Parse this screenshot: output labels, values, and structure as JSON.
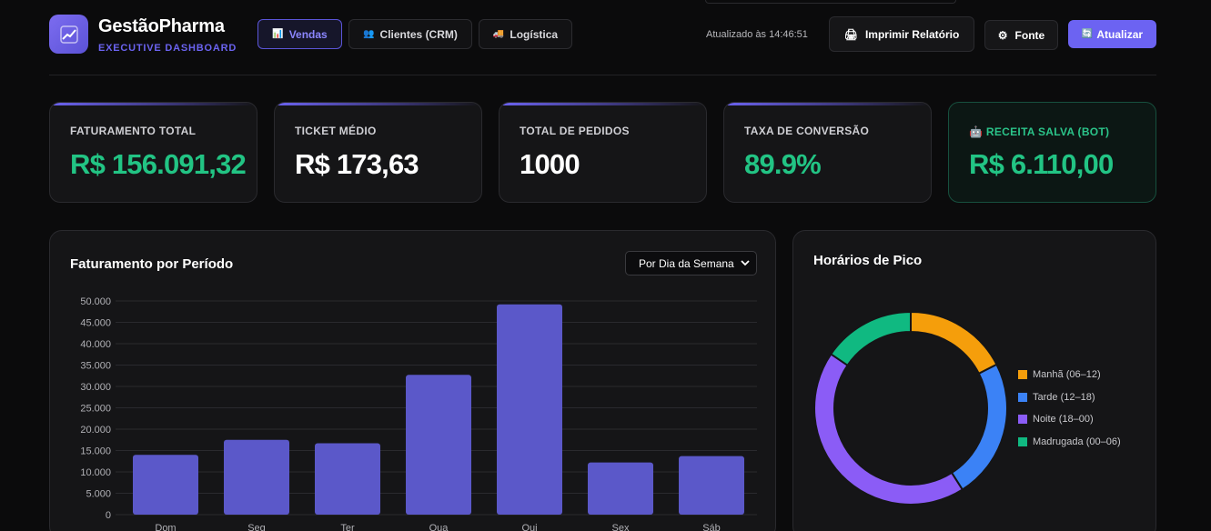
{
  "brand": {
    "title": "GestãoPharma",
    "subtitle": "EXECUTIVE DASHBOARD",
    "logo_icon": "chart-up-icon"
  },
  "nav": [
    {
      "label": "Vendas",
      "icon": "📊",
      "active": true
    },
    {
      "label": "Clientes (CRM)",
      "icon": "👥",
      "active": false
    },
    {
      "label": "Logística",
      "icon": "🚚",
      "active": false
    }
  ],
  "header": {
    "updated": "Atualizado às 14:46:51",
    "print_label": "Imprimir Relatório",
    "print_icon": "🖨",
    "font_label": "Fonte",
    "font_icon": "⚙",
    "refresh_label": "Atualizar",
    "refresh_icon": "🔄"
  },
  "kpis": [
    {
      "label": "FATURAMENTO TOTAL",
      "value": "R$ 156.091,32",
      "color": "#22c484"
    },
    {
      "label": "TICKET MÉDIO",
      "value": "R$ 173,63",
      "color": "#ffffff"
    },
    {
      "label": "TOTAL DE PEDIDOS",
      "value": "1000",
      "color": "#ffffff"
    },
    {
      "label": "TAXA DE CONVERSÃO",
      "value": "89.9%",
      "color": "#22c484"
    },
    {
      "label": "RECEITA SALVA (BOT)",
      "icon": "🤖",
      "value": "R$ 6.110,00",
      "color": "#22c484"
    }
  ],
  "revenue_panel": {
    "title": "Faturamento por Período",
    "select_value": "Por Dia da Semana"
  },
  "peak_panel": {
    "title": "Horários de Pico"
  },
  "chart_data": [
    {
      "type": "bar",
      "title": "Faturamento por Período",
      "categories": [
        "Dom",
        "Seg",
        "Ter",
        "Qua",
        "Qui",
        "Sex",
        "Sáb"
      ],
      "values": [
        14000,
        17500,
        16700,
        32700,
        49200,
        12200,
        13700
      ],
      "ylim": [
        0,
        50000
      ],
      "yticks": [
        "50.000",
        "45.000",
        "40.000",
        "35.000",
        "30.000",
        "25.000",
        "20.000",
        "15.000",
        "10.000",
        "5.000",
        "0"
      ],
      "color": "#5b58c9",
      "grid": true
    },
    {
      "type": "pie",
      "title": "Horários de Pico",
      "labels": [
        "Manhã (06–12)",
        "Tarde (12–18)",
        "Noite (18–00)",
        "Madrugada (00–06)"
      ],
      "values": [
        17.5,
        23.5,
        43.5,
        15.5
      ],
      "colors": [
        "#f59e0b",
        "#3b82f6",
        "#8b5cf6",
        "#10b981"
      ],
      "legend": "right"
    }
  ]
}
